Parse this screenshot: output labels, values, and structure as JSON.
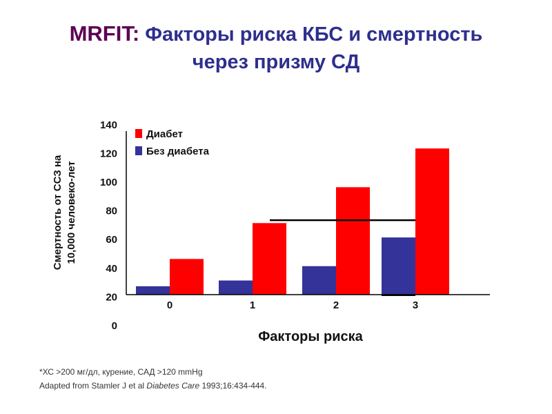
{
  "title": {
    "prefix": "MRFIT:",
    "line1": "Факторы риска КБС и смертность",
    "line2": "через призму СД"
  },
  "footnotes": {
    "note": "*ХС >200 мг/дл, курение, САД >120 mmHg",
    "citation_pre": "Adapted from Stamler J et al ",
    "citation_journal": "Diabetes Care",
    "citation_post": " 1993;16:434-444."
  },
  "colors": {
    "diabetes": "#ff0000",
    "no_diabetes": "#333399",
    "title_prefix": "#5c0055",
    "title": "#2e2e8e"
  },
  "chart_data": {
    "type": "bar",
    "xlabel": "Факторы риска",
    "ylabel_lines": [
      "Смертность от ССЗ на",
      "10,000 человеко-лет"
    ],
    "categories": [
      "0",
      "1",
      "2",
      "3"
    ],
    "yticks": [
      "0",
      "20",
      "40",
      "60",
      "80",
      "100",
      "120",
      "140"
    ],
    "ylim": [
      0,
      140
    ],
    "series": [
      {
        "name": "Без диабета",
        "color": "#333399",
        "values": [
          27,
          31,
          41,
          61
        ]
      },
      {
        "name": "Диабет",
        "color": "#ff0000",
        "values": [
          46,
          71,
          96,
          123
        ]
      }
    ],
    "legend_order": [
      "Диабет",
      "Без диабета"
    ],
    "legend": "top-left",
    "reference_line": {
      "value": 73,
      "from_category": "1",
      "to_category": "3"
    }
  }
}
